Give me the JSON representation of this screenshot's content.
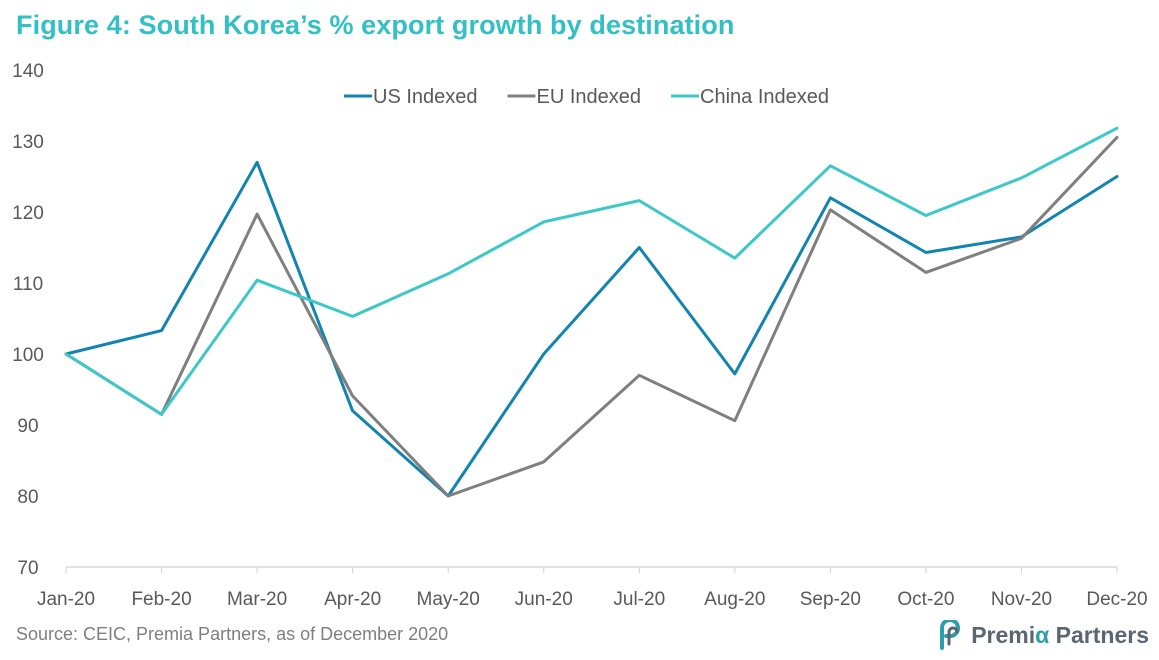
{
  "title": "Figure 4: South Korea’s % export growth by destination",
  "source": "Source: CEIC, Premia Partners, as of December 2020",
  "brand": {
    "name_part1": "Premi",
    "name_alpha": "α",
    "name_part2": " Partners",
    "icon": "premia-logo-icon"
  },
  "colors": {
    "title": "#33c0c5",
    "us": "#1284b0",
    "eu": "#7f7f7f",
    "china": "#3cc8c8"
  },
  "chart_data": {
    "type": "line",
    "categories": [
      "Jan-20",
      "Feb-20",
      "Mar-20",
      "Apr-20",
      "May-20",
      "Jun-20",
      "Jul-20",
      "Aug-20",
      "Sep-20",
      "Oct-20",
      "Nov-20",
      "Dec-20"
    ],
    "ylim": [
      70,
      140
    ],
    "yticks": [
      70,
      80,
      90,
      100,
      110,
      120,
      130,
      140
    ],
    "grid": false,
    "legend_position": "top",
    "series": [
      {
        "name": "US Indexed",
        "color": "#1284b0",
        "values": [
          100,
          103.3,
          127,
          92,
          80,
          100,
          115,
          97.2,
          122,
          114.3,
          116.5,
          125
        ]
      },
      {
        "name": "EU Indexed",
        "color": "#7f7f7f",
        "values": [
          100,
          91.5,
          119.7,
          94.1,
          80,
          84.8,
          97,
          90.6,
          120.3,
          111.5,
          116.3,
          130.5
        ]
      },
      {
        "name": "China Indexed",
        "color": "#3cc8c8",
        "values": [
          100,
          91.5,
          110.4,
          105.3,
          111.3,
          118.6,
          121.6,
          113.5,
          126.5,
          119.5,
          124.8,
          131.8
        ]
      }
    ]
  }
}
